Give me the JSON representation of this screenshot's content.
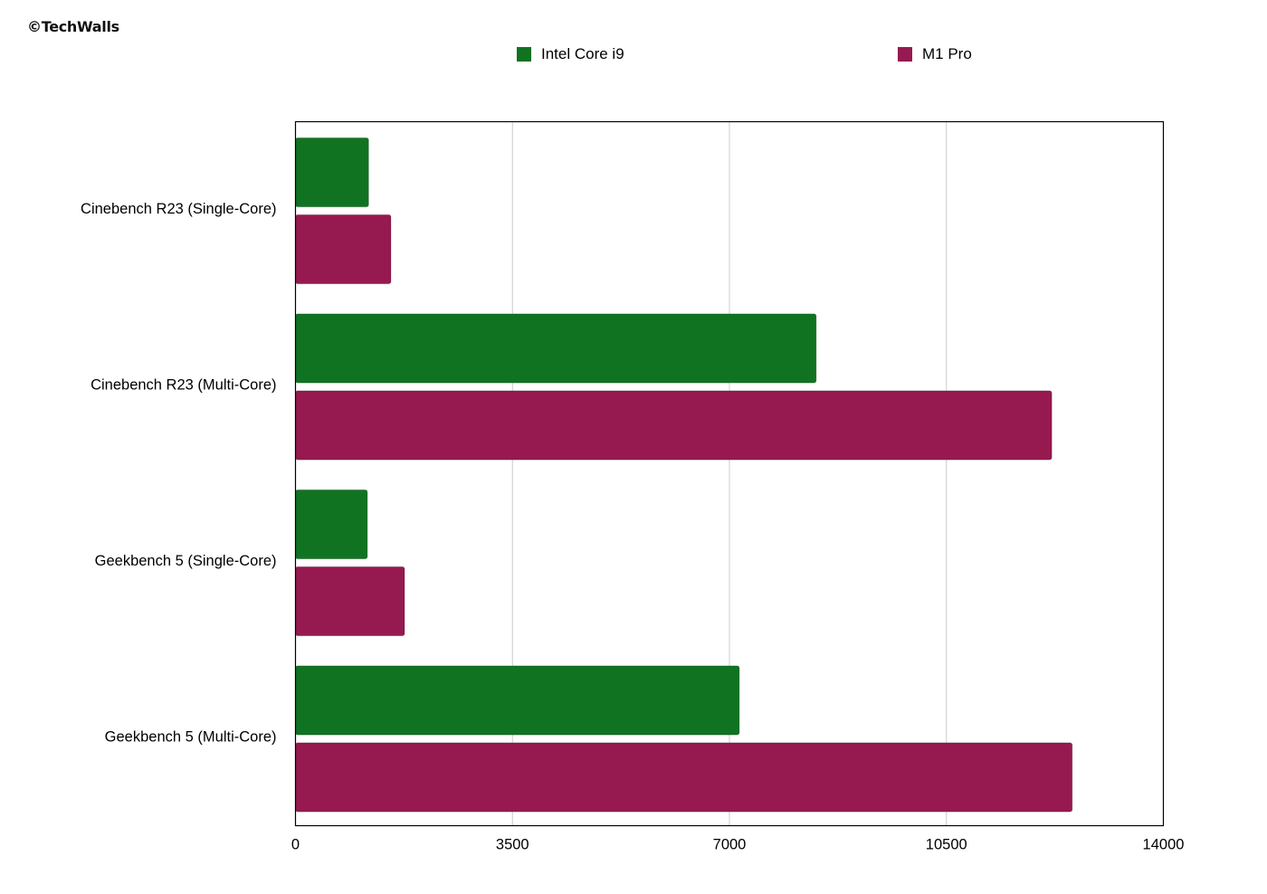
{
  "watermark": "©TechWalls",
  "chart_data": {
    "type": "bar",
    "orientation": "horizontal",
    "title": "",
    "xlabel": "",
    "ylabel": "",
    "categories": [
      "Cinebench R23 (Single-Core)",
      "Cinebench R23 (Multi-Core)",
      "Geekbench 5 (Single-Core)",
      "Geekbench 5 (Multi-Core)"
    ],
    "series": [
      {
        "name": "Intel Core i9",
        "color": "#107322",
        "values": [
          1180,
          8400,
          1160,
          7160
        ]
      },
      {
        "name": "M1 Pro",
        "color": "#961a50",
        "values": [
          1540,
          12200,
          1760,
          12530
        ]
      }
    ],
    "xlim": [
      0,
      14000
    ],
    "xticks": [
      0,
      3500,
      7000,
      10500,
      14000
    ],
    "xtick_labels": [
      "0",
      "3500",
      "7000",
      "10500",
      "14000"
    ],
    "grid": "vertical",
    "legend_position": "top"
  }
}
